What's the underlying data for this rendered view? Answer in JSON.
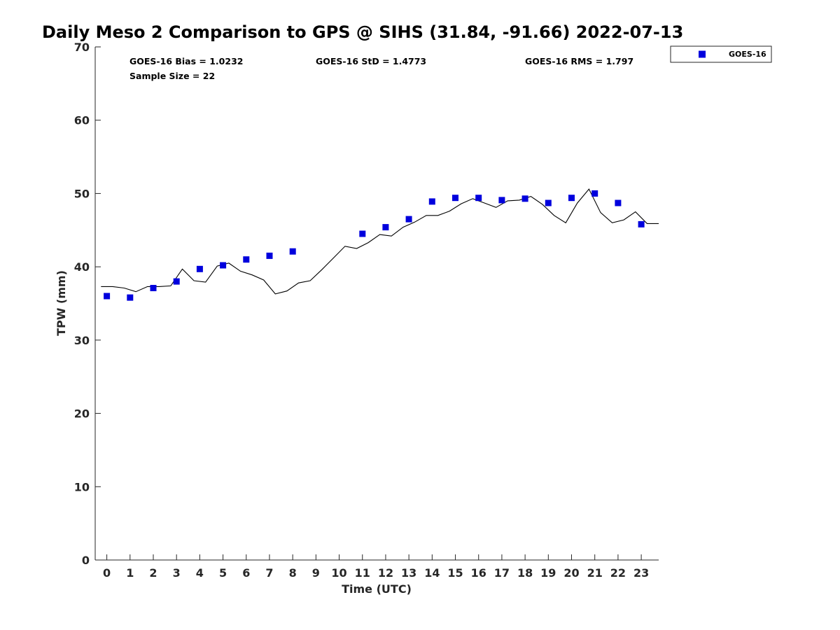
{
  "chart_data": {
    "type": "scatter",
    "title": "Daily Meso 2 Comparison to GPS @ SIHS (31.84, -91.66) 2022-07-13",
    "xlabel": "Time (UTC)",
    "ylabel": "TPW (mm)",
    "xlim": [
      -0.5,
      23.75
    ],
    "ylim": [
      0,
      70
    ],
    "x_ticks": [
      "0",
      "1",
      "2",
      "3",
      "4",
      "5",
      "6",
      "7",
      "8",
      "9",
      "10",
      "11",
      "12",
      "13",
      "14",
      "15",
      "16",
      "17",
      "18",
      "19",
      "20",
      "21",
      "22",
      "23"
    ],
    "y_ticks": [
      "0",
      "10",
      "20",
      "30",
      "40",
      "50",
      "60",
      "70"
    ],
    "grid": false,
    "legend_position": "top-right",
    "stats": {
      "bias": "GOES-16 Bias = 1.0232",
      "std": "GOES-16 StD = 1.4773",
      "rms": "GOES-16 RMS = 1.797",
      "sample": "Sample Size = 22"
    },
    "series": [
      {
        "name": "GOES-16",
        "type": "scatter",
        "color": "#0000dd",
        "marker": "square",
        "x": [
          0,
          1,
          2,
          3,
          4,
          5,
          6,
          7,
          8,
          11,
          12,
          13,
          14,
          15,
          16,
          17,
          18,
          19,
          20,
          21,
          22,
          23
        ],
        "y": [
          36.0,
          35.8,
          37.1,
          38.0,
          39.7,
          40.2,
          41.0,
          41.5,
          42.1,
          44.5,
          45.4,
          46.5,
          48.9,
          49.4,
          49.4,
          49.1,
          49.3,
          48.7,
          49.4,
          50.0,
          48.7,
          45.8
        ]
      },
      {
        "type": "line",
        "color": "#000000",
        "x": [
          -0.25,
          0.25,
          0.75,
          1.25,
          1.75,
          2.25,
          2.75,
          3.25,
          3.75,
          4.25,
          4.75,
          5.25,
          5.75,
          6.25,
          6.75,
          7.25,
          7.75,
          8.25,
          8.75,
          9.25,
          9.75,
          10.25,
          10.75,
          11.25,
          11.75,
          12.25,
          12.75,
          13.25,
          13.75,
          14.25,
          14.75,
          15.25,
          15.75,
          16.25,
          16.75,
          17.25,
          17.75,
          18.25,
          18.75,
          19.25,
          19.75,
          20.25,
          20.75,
          21.25,
          21.75,
          22.25,
          22.75,
          23.25,
          23.75
        ],
        "y": [
          37.3,
          37.3,
          37.1,
          36.6,
          37.3,
          37.3,
          37.4,
          39.7,
          38.1,
          37.9,
          40.1,
          40.5,
          39.4,
          38.9,
          38.2,
          36.3,
          36.7,
          37.8,
          38.1,
          39.6,
          41.2,
          42.8,
          42.5,
          43.3,
          44.4,
          44.2,
          45.4,
          46.1,
          47.0,
          47.0,
          47.6,
          48.6,
          49.3,
          48.7,
          48.1,
          49.0,
          49.1,
          49.6,
          48.5,
          47.0,
          46.0,
          48.7,
          50.6,
          47.4,
          46.0,
          46.4,
          47.5,
          45.9,
          45.9
        ]
      }
    ]
  }
}
